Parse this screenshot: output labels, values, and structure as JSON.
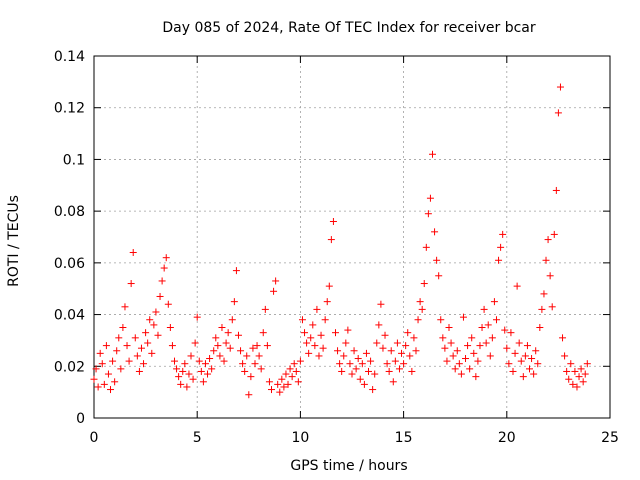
{
  "chart_data": {
    "type": "scatter",
    "title": "Day 085 of 2024, Rate Of TEC Index for receiver bcar",
    "xlabel": "GPS time / hours",
    "ylabel": "ROTI / TECUs",
    "xlim": [
      0,
      25
    ],
    "ylim": [
      0,
      0.14
    ],
    "xticks": [
      0,
      5,
      10,
      15,
      20,
      25
    ],
    "yticks": [
      0,
      0.02,
      0.04,
      0.06,
      0.08,
      0.1,
      0.12,
      0.14
    ],
    "xtick_labels": [
      "0",
      "5",
      "10",
      "15",
      "20",
      "25"
    ],
    "ytick_labels": [
      "0",
      "0.02",
      "0.04",
      "0.06",
      "0.08",
      "0.1",
      "0.12",
      "0.14"
    ],
    "grid": true,
    "marker": "+",
    "color": "#ff0000",
    "series": [
      {
        "values": [
          [
            0.0,
            0.015
          ],
          [
            0.1,
            0.019
          ],
          [
            0.2,
            0.012
          ],
          [
            0.3,
            0.025
          ],
          [
            0.4,
            0.021
          ],
          [
            0.5,
            0.013
          ],
          [
            0.6,
            0.028
          ],
          [
            0.7,
            0.017
          ],
          [
            0.8,
            0.011
          ],
          [
            0.9,
            0.022
          ],
          [
            1.0,
            0.014
          ],
          [
            1.1,
            0.026
          ],
          [
            1.2,
            0.031
          ],
          [
            1.3,
            0.019
          ],
          [
            1.4,
            0.035
          ],
          [
            1.5,
            0.043
          ],
          [
            1.6,
            0.028
          ],
          [
            1.7,
            0.022
          ],
          [
            1.8,
            0.052
          ],
          [
            1.9,
            0.064
          ],
          [
            2.0,
            0.031
          ],
          [
            2.1,
            0.024
          ],
          [
            2.2,
            0.018
          ],
          [
            2.3,
            0.027
          ],
          [
            2.4,
            0.021
          ],
          [
            2.5,
            0.033
          ],
          [
            2.6,
            0.029
          ],
          [
            2.7,
            0.038
          ],
          [
            2.8,
            0.025
          ],
          [
            2.9,
            0.036
          ],
          [
            3.0,
            0.041
          ],
          [
            3.1,
            0.032
          ],
          [
            3.2,
            0.047
          ],
          [
            3.3,
            0.053
          ],
          [
            3.4,
            0.058
          ],
          [
            3.5,
            0.062
          ],
          [
            3.6,
            0.044
          ],
          [
            3.7,
            0.035
          ],
          [
            3.8,
            0.028
          ],
          [
            3.9,
            0.022
          ],
          [
            4.0,
            0.019
          ],
          [
            4.1,
            0.016
          ],
          [
            4.2,
            0.013
          ],
          [
            4.3,
            0.018
          ],
          [
            4.4,
            0.021
          ],
          [
            4.5,
            0.012
          ],
          [
            4.6,
            0.017
          ],
          [
            4.7,
            0.024
          ],
          [
            4.8,
            0.015
          ],
          [
            4.9,
            0.029
          ],
          [
            5.0,
            0.039
          ],
          [
            5.1,
            0.022
          ],
          [
            5.2,
            0.018
          ],
          [
            5.3,
            0.014
          ],
          [
            5.4,
            0.021
          ],
          [
            5.5,
            0.017
          ],
          [
            5.6,
            0.023
          ],
          [
            5.7,
            0.019
          ],
          [
            5.8,
            0.026
          ],
          [
            5.9,
            0.031
          ],
          [
            6.0,
            0.028
          ],
          [
            6.1,
            0.024
          ],
          [
            6.2,
            0.035
          ],
          [
            6.3,
            0.022
          ],
          [
            6.4,
            0.029
          ],
          [
            6.5,
            0.033
          ],
          [
            6.6,
            0.027
          ],
          [
            6.7,
            0.038
          ],
          [
            6.8,
            0.045
          ],
          [
            6.9,
            0.057
          ],
          [
            7.0,
            0.032
          ],
          [
            7.1,
            0.026
          ],
          [
            7.2,
            0.021
          ],
          [
            7.3,
            0.018
          ],
          [
            7.4,
            0.024
          ],
          [
            7.5,
            0.009
          ],
          [
            7.6,
            0.016
          ],
          [
            7.7,
            0.027
          ],
          [
            7.8,
            0.021
          ],
          [
            7.9,
            0.028
          ],
          [
            8.0,
            0.024
          ],
          [
            8.1,
            0.019
          ],
          [
            8.2,
            0.033
          ],
          [
            8.3,
            0.042
          ],
          [
            8.4,
            0.028
          ],
          [
            8.5,
            0.014
          ],
          [
            8.6,
            0.011
          ],
          [
            8.7,
            0.049
          ],
          [
            8.8,
            0.053
          ],
          [
            8.9,
            0.013
          ],
          [
            9.0,
            0.01
          ],
          [
            9.1,
            0.015
          ],
          [
            9.2,
            0.012
          ],
          [
            9.3,
            0.017
          ],
          [
            9.4,
            0.013
          ],
          [
            9.5,
            0.019
          ],
          [
            9.6,
            0.016
          ],
          [
            9.7,
            0.021
          ],
          [
            9.8,
            0.018
          ],
          [
            9.9,
            0.014
          ],
          [
            10.0,
            0.022
          ],
          [
            10.1,
            0.038
          ],
          [
            10.2,
            0.033
          ],
          [
            10.3,
            0.029
          ],
          [
            10.4,
            0.025
          ],
          [
            10.5,
            0.031
          ],
          [
            10.6,
            0.036
          ],
          [
            10.7,
            0.028
          ],
          [
            10.8,
            0.042
          ],
          [
            10.9,
            0.024
          ],
          [
            11.0,
            0.032
          ],
          [
            11.1,
            0.027
          ],
          [
            11.2,
            0.038
          ],
          [
            11.3,
            0.045
          ],
          [
            11.4,
            0.051
          ],
          [
            11.5,
            0.069
          ],
          [
            11.6,
            0.076
          ],
          [
            11.7,
            0.033
          ],
          [
            11.8,
            0.026
          ],
          [
            11.9,
            0.021
          ],
          [
            12.0,
            0.018
          ],
          [
            12.1,
            0.024
          ],
          [
            12.2,
            0.029
          ],
          [
            12.3,
            0.034
          ],
          [
            12.4,
            0.021
          ],
          [
            12.5,
            0.017
          ],
          [
            12.6,
            0.026
          ],
          [
            12.7,
            0.019
          ],
          [
            12.8,
            0.023
          ],
          [
            12.9,
            0.015
          ],
          [
            13.0,
            0.021
          ],
          [
            13.1,
            0.013
          ],
          [
            13.2,
            0.025
          ],
          [
            13.3,
            0.018
          ],
          [
            13.4,
            0.022
          ],
          [
            13.5,
            0.011
          ],
          [
            13.6,
            0.017
          ],
          [
            13.7,
            0.029
          ],
          [
            13.8,
            0.036
          ],
          [
            13.9,
            0.044
          ],
          [
            14.0,
            0.027
          ],
          [
            14.1,
            0.032
          ],
          [
            14.2,
            0.021
          ],
          [
            14.3,
            0.018
          ],
          [
            14.4,
            0.026
          ],
          [
            14.5,
            0.014
          ],
          [
            14.6,
            0.022
          ],
          [
            14.7,
            0.029
          ],
          [
            14.8,
            0.019
          ],
          [
            14.9,
            0.025
          ],
          [
            15.0,
            0.021
          ],
          [
            15.1,
            0.028
          ],
          [
            15.2,
            0.033
          ],
          [
            15.3,
            0.024
          ],
          [
            15.4,
            0.018
          ],
          [
            15.5,
            0.031
          ],
          [
            15.6,
            0.026
          ],
          [
            15.7,
            0.038
          ],
          [
            15.8,
            0.045
          ],
          [
            15.9,
            0.042
          ],
          [
            16.0,
            0.052
          ],
          [
            16.1,
            0.066
          ],
          [
            16.2,
            0.079
          ],
          [
            16.3,
            0.085
          ],
          [
            16.4,
            0.102
          ],
          [
            16.5,
            0.072
          ],
          [
            16.6,
            0.061
          ],
          [
            16.7,
            0.055
          ],
          [
            16.8,
            0.038
          ],
          [
            16.9,
            0.031
          ],
          [
            17.0,
            0.027
          ],
          [
            17.1,
            0.022
          ],
          [
            17.2,
            0.035
          ],
          [
            17.3,
            0.029
          ],
          [
            17.4,
            0.024
          ],
          [
            17.5,
            0.019
          ],
          [
            17.6,
            0.026
          ],
          [
            17.7,
            0.021
          ],
          [
            17.8,
            0.017
          ],
          [
            17.9,
            0.039
          ],
          [
            18.0,
            0.023
          ],
          [
            18.1,
            0.028
          ],
          [
            18.2,
            0.019
          ],
          [
            18.3,
            0.031
          ],
          [
            18.4,
            0.025
          ],
          [
            18.5,
            0.016
          ],
          [
            18.6,
            0.022
          ],
          [
            18.7,
            0.028
          ],
          [
            18.8,
            0.035
          ],
          [
            18.9,
            0.042
          ],
          [
            19.0,
            0.029
          ],
          [
            19.1,
            0.036
          ],
          [
            19.2,
            0.024
          ],
          [
            19.3,
            0.031
          ],
          [
            19.4,
            0.045
          ],
          [
            19.5,
            0.038
          ],
          [
            19.6,
            0.061
          ],
          [
            19.7,
            0.066
          ],
          [
            19.8,
            0.071
          ],
          [
            19.9,
            0.034
          ],
          [
            20.0,
            0.027
          ],
          [
            20.1,
            0.021
          ],
          [
            20.2,
            0.033
          ],
          [
            20.3,
            0.018
          ],
          [
            20.4,
            0.025
          ],
          [
            20.5,
            0.051
          ],
          [
            20.6,
            0.029
          ],
          [
            20.7,
            0.022
          ],
          [
            20.8,
            0.016
          ],
          [
            20.9,
            0.024
          ],
          [
            21.0,
            0.028
          ],
          [
            21.1,
            0.019
          ],
          [
            21.2,
            0.023
          ],
          [
            21.3,
            0.017
          ],
          [
            21.4,
            0.026
          ],
          [
            21.5,
            0.021
          ],
          [
            21.6,
            0.035
          ],
          [
            21.7,
            0.042
          ],
          [
            21.8,
            0.048
          ],
          [
            21.9,
            0.061
          ],
          [
            22.0,
            0.069
          ],
          [
            22.1,
            0.055
          ],
          [
            22.2,
            0.043
          ],
          [
            22.3,
            0.071
          ],
          [
            22.4,
            0.088
          ],
          [
            22.5,
            0.118
          ],
          [
            22.6,
            0.128
          ],
          [
            22.7,
            0.031
          ],
          [
            22.8,
            0.024
          ],
          [
            22.9,
            0.018
          ],
          [
            23.0,
            0.015
          ],
          [
            23.1,
            0.021
          ],
          [
            23.2,
            0.013
          ],
          [
            23.3,
            0.018
          ],
          [
            23.4,
            0.012
          ],
          [
            23.5,
            0.016
          ],
          [
            23.6,
            0.019
          ],
          [
            23.7,
            0.014
          ],
          [
            23.8,
            0.017
          ],
          [
            23.9,
            0.021
          ]
        ]
      }
    ]
  }
}
